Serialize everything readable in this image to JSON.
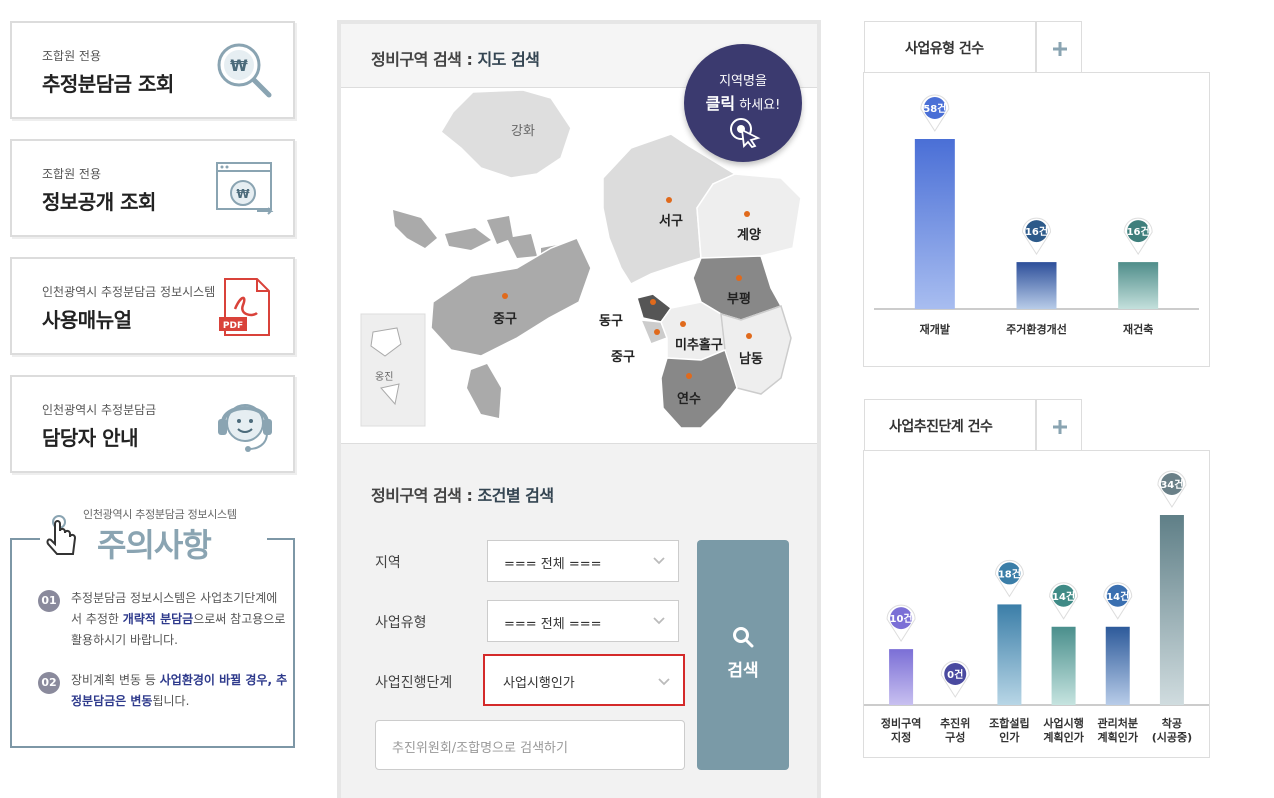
{
  "cards": [
    {
      "sub": "조합원 전용",
      "main": "추정분담금 조회",
      "icon": "won-search-icon"
    },
    {
      "sub": "조합원 전용",
      "main": "정보공개 조회",
      "icon": "won-browser-icon"
    },
    {
      "sub": "인천광역시 추정분담금 정보시스템",
      "main": "사용매뉴얼",
      "icon": "pdf-icon"
    },
    {
      "sub": "인천광역시 추정분담금",
      "main": "담당자 안내",
      "icon": "headset-icon"
    }
  ],
  "notice": {
    "small_title": "인천광역시 추정분담금 정보시스템",
    "big_title": "주의사항",
    "items": [
      {
        "num": "01",
        "pre": "추정분담금 정보시스템은 사업초기단계에서 추정한 ",
        "bold": "개략적 분담금",
        "post": "으로써 참고용으로 활용하시기 바랍니다."
      },
      {
        "num": "02",
        "pre": "장비계획 변동 등 ",
        "bold": "사업환경이 바뀔 경우, 추정분담금은 변동",
        "post": "됩니다."
      }
    ]
  },
  "map_section": {
    "title_prefix": "정비구역 검색 : ",
    "title_hl": "지도 검색",
    "badge_line1": "지역명을",
    "badge_bold": "클릭",
    "badge_rest": " 하세요!",
    "regions": {
      "ganghwa": "강화",
      "seo": "서구",
      "gyeyang": "계양",
      "bupyeong": "부평",
      "jung1": "중구",
      "dong": "동구",
      "jung2": "중구",
      "michuhol": "미추홀구",
      "namdong": "남동",
      "yeonsu": "연수",
      "ongjin": "옹진"
    }
  },
  "cond_section": {
    "title_prefix": "정비구역 검색 : ",
    "title_hl": "조건별 검색",
    "region_label": "지역",
    "region_value": "=== 전체 ===",
    "type_label": "사업유형",
    "type_value": "=== 전체 ===",
    "stage_label": "사업진행단계",
    "stage_value": "사업시행인가",
    "search_placeholder": "추진위원회/조합명으로 검색하기",
    "search_button": "검색"
  },
  "chart_type": {
    "tab_title": "사업유형 건수",
    "chart_data": {
      "type": "bar",
      "categories": [
        "재개발",
        "주거환경개선",
        "재건축"
      ],
      "values": [
        58,
        16,
        16
      ],
      "value_labels": [
        "58건",
        "16건",
        "16건"
      ],
      "ylim": [
        0,
        58
      ]
    }
  },
  "chart_stage": {
    "tab_title": "사업추진단계 건수",
    "chart_data": {
      "type": "bar",
      "categories": [
        "정비구역 지정",
        "추진위 구성",
        "조합설립 인가",
        "사업시행 계획인가",
        "관리처분 계획인가",
        "착공 (시공중)"
      ],
      "category_lines": [
        [
          "정비구역",
          "지정"
        ],
        [
          "추진위",
          "구성"
        ],
        [
          "조합설립",
          "인가"
        ],
        [
          "사업시행",
          "계획인가"
        ],
        [
          "관리처분",
          "계획인가"
        ],
        [
          "착공",
          "(시공중)"
        ]
      ],
      "values": [
        10,
        0,
        18,
        14,
        14,
        34
      ],
      "value_labels": [
        "10건",
        "0건",
        "18건",
        "14건",
        "14건",
        "34건"
      ],
      "ylim": [
        0,
        34
      ]
    }
  },
  "colors": {
    "accent": "#7a9aa7",
    "badge": "#3b3a6f",
    "highlight_border": "#d42a2a"
  }
}
